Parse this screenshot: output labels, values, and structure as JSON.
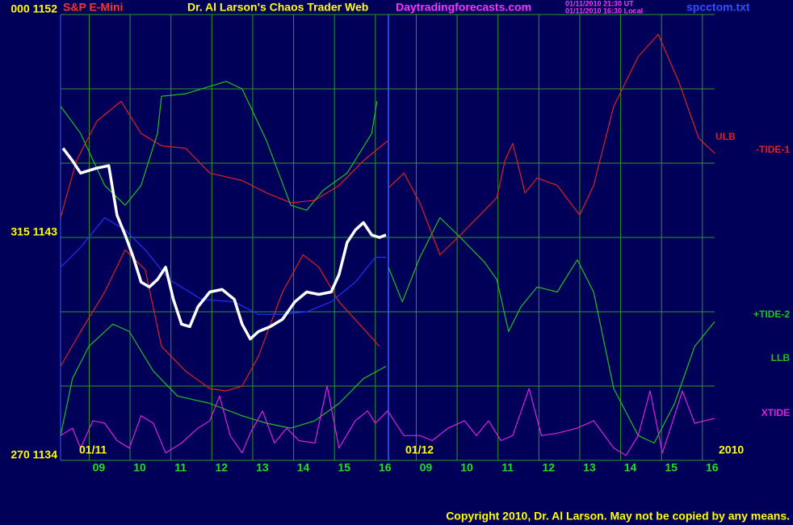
{
  "chart_data": {
    "type": "line",
    "title": "Dr. Al Larson's Chaos Trader Web",
    "instrument": "S&P E-Mini",
    "site": "Daytradingforecasts.com",
    "timestamps": [
      "01/11/2010 21:30 UT",
      "01/11/2010 16:30 Local"
    ],
    "file": "spcctom.txt",
    "copyright": "Copyright 2010, Dr. Al Larson. May not be copied by any means.",
    "date_labels": [
      "01/11",
      "01/12",
      "2010"
    ],
    "xlim": [
      0.3,
      16.3
    ],
    "ylim": [
      1134,
      1152
    ],
    "yticks": [
      {
        "value": 1152,
        "label": "000 1152"
      },
      {
        "value": 1143,
        "label": "315 1143"
      },
      {
        "value": 1134,
        "label": "270 1134"
      }
    ],
    "ygrid": [
      1152,
      1149,
      1146,
      1143,
      1140,
      1137,
      1134
    ],
    "xticks": [
      {
        "value": 1,
        "label": "09"
      },
      {
        "value": 2,
        "label": "10"
      },
      {
        "value": 3,
        "label": "11"
      },
      {
        "value": 4,
        "label": "12"
      },
      {
        "value": 5,
        "label": "13"
      },
      {
        "value": 6,
        "label": "14"
      },
      {
        "value": 7,
        "label": "15"
      },
      {
        "value": 8,
        "label": "16"
      },
      {
        "value": 9,
        "label": "09"
      },
      {
        "value": 10,
        "label": "10"
      },
      {
        "value": 11,
        "label": "11"
      },
      {
        "value": 12,
        "label": "12"
      },
      {
        "value": 13,
        "label": "13"
      },
      {
        "value": 14,
        "label": "14"
      },
      {
        "value": 15,
        "label": "15"
      },
      {
        "value": 16,
        "label": "16"
      }
    ],
    "day_break": 8.32,
    "grid": true,
    "series": [
      {
        "name": "ULB",
        "color": "#e02020",
        "x": [
          0.3,
          0.69,
          1.19,
          1.78,
          2.27,
          2.77,
          3.36,
          3.95,
          4.74,
          5.34,
          5.93,
          6.52,
          7.11,
          7.71,
          8.3
        ],
        "values": [
          1143.8,
          1146.1,
          1147.7,
          1148.5,
          1147.2,
          1146.7,
          1146.6,
          1145.6,
          1145.3,
          1144.8,
          1144.4,
          1144.5,
          1145.1,
          1146.1,
          1146.9
        ]
      },
      {
        "name": "-TIDE-1",
        "color": "#e02020",
        "x": [
          8.32,
          8.7,
          9.09,
          9.58,
          10.08,
          10.67,
          10.97,
          11.17,
          11.36,
          11.66,
          11.96,
          12.45,
          13.0,
          13.34,
          13.83,
          14.43,
          14.92,
          15.42,
          15.91,
          16.3
        ],
        "values": [
          1145.0,
          1145.6,
          1144.4,
          1142.3,
          1143.1,
          1144.1,
          1144.6,
          1146.1,
          1146.8,
          1144.8,
          1145.4,
          1145.1,
          1143.9,
          1145.1,
          1148.3,
          1150.3,
          1151.2,
          1149.3,
          1147.0,
          1146.4
        ]
      },
      {
        "name": "+TIDE-2",
        "color": "#20c020",
        "x": [
          8.32,
          8.66,
          9.09,
          9.58,
          10.08,
          10.67,
          10.97,
          11.26,
          11.56,
          11.96,
          12.45,
          12.94,
          13.34,
          13.83,
          14.43,
          14.82,
          15.32,
          15.81,
          16.3
        ],
        "values": [
          1141.8,
          1140.4,
          1142.2,
          1143.8,
          1143.0,
          1142.0,
          1141.3,
          1139.2,
          1140.2,
          1141.0,
          1140.8,
          1142.1,
          1140.8,
          1136.9,
          1135.0,
          1134.7,
          1136.3,
          1138.6,
          1139.6
        ]
      },
      {
        "name": "LLB",
        "color": "#20c020",
        "x": [
          0.3,
          0.59,
          0.99,
          1.58,
          1.98,
          2.57,
          3.16,
          3.95,
          4.74,
          5.34,
          5.93,
          6.52,
          7.11,
          7.71,
          8.26
        ],
        "values": [
          1135.0,
          1137.3,
          1138.6,
          1139.5,
          1139.2,
          1137.6,
          1136.6,
          1136.3,
          1135.8,
          1135.5,
          1135.3,
          1135.6,
          1136.3,
          1137.3,
          1137.8
        ]
      },
      {
        "name": "XTIDE",
        "color": "#e020e0",
        "x": [
          0.3,
          0.59,
          0.79,
          1.09,
          1.38,
          1.68,
          1.98,
          2.27,
          2.57,
          2.87,
          3.26,
          3.66,
          3.95,
          4.19,
          4.45,
          4.74,
          4.94,
          5.24,
          5.53,
          5.83,
          6.13,
          6.52,
          6.82,
          7.11,
          7.51,
          7.81,
          8.0,
          8.3,
          8.7,
          9.09,
          9.39,
          9.78,
          10.18,
          10.47,
          10.77,
          11.07,
          11.36,
          11.76,
          12.06,
          12.45,
          12.94,
          13.34,
          13.83,
          14.13,
          14.43,
          14.72,
          15.02,
          15.22,
          15.51,
          15.81,
          16.3
        ],
        "values": [
          1135.0,
          1135.3,
          1134.5,
          1135.6,
          1135.5,
          1134.8,
          1134.5,
          1135.8,
          1135.5,
          1134.3,
          1134.7,
          1135.3,
          1135.6,
          1136.6,
          1135.0,
          1134.3,
          1135.1,
          1136.0,
          1134.7,
          1135.3,
          1134.8,
          1134.7,
          1137.0,
          1134.5,
          1135.6,
          1136.0,
          1135.5,
          1136.0,
          1135.0,
          1135.0,
          1134.8,
          1135.3,
          1135.6,
          1135.0,
          1135.6,
          1134.8,
          1135.0,
          1136.9,
          1135.0,
          1135.1,
          1135.3,
          1135.6,
          1134.5,
          1134.2,
          1135.0,
          1136.8,
          1134.3,
          1135.3,
          1136.8,
          1135.5,
          1135.7
        ]
      },
      {
        "color": "#e02020",
        "x": [
          0.3,
          0.79,
          1.38,
          1.88,
          2.37,
          2.77,
          3.36,
          3.95,
          4.35,
          4.74,
          5.14,
          5.73,
          6.23,
          6.62,
          7.11,
          7.61,
          8.1
        ],
        "values": [
          1137.8,
          1139.2,
          1140.8,
          1142.5,
          1141.7,
          1138.6,
          1137.6,
          1136.9,
          1136.8,
          1137.0,
          1138.2,
          1140.8,
          1142.3,
          1141.8,
          1140.4,
          1139.5,
          1138.6
        ]
      },
      {
        "color": "#20c020",
        "x": [
          0.3,
          0.79,
          1.38,
          1.88,
          2.27,
          2.67,
          2.77,
          3.36,
          3.95,
          4.35,
          4.74,
          5.34,
          5.93,
          6.32,
          6.72,
          7.31,
          7.91,
          8.04
        ],
        "values": [
          1148.3,
          1147.2,
          1145.1,
          1144.3,
          1145.1,
          1147.2,
          1148.7,
          1148.8,
          1149.1,
          1149.3,
          1149.0,
          1146.9,
          1144.3,
          1144.1,
          1144.9,
          1145.6,
          1147.2,
          1148.5
        ]
      },
      {
        "color": "#2030ff",
        "x": [
          0.3,
          0.79,
          1.38,
          1.88,
          2.37,
          2.96,
          3.75,
          4.55,
          5.14,
          5.73,
          6.32,
          6.92,
          7.51,
          8.0,
          8.26
        ],
        "values": [
          1141.8,
          1142.6,
          1143.8,
          1143.3,
          1142.5,
          1141.3,
          1140.5,
          1140.4,
          1139.9,
          1139.9,
          1140.0,
          1140.4,
          1141.2,
          1142.2,
          1142.2
        ]
      },
      {
        "color": "#ffffff",
        "x": [
          0.36,
          0.59,
          0.79,
          0.99,
          1.19,
          1.48,
          1.68,
          1.88,
          2.08,
          2.27,
          2.47,
          2.67,
          2.87,
          3.06,
          3.26,
          3.46,
          3.66,
          3.95,
          4.25,
          4.55,
          4.74,
          4.94,
          5.14,
          5.43,
          5.73,
          6.03,
          6.32,
          6.62,
          6.92,
          7.11,
          7.31,
          7.51,
          7.71,
          7.91,
          8.1,
          8.26
        ],
        "values": [
          1146.6,
          1146.1,
          1145.6,
          1145.7,
          1145.8,
          1145.9,
          1143.9,
          1143.1,
          1142.2,
          1141.2,
          1141.0,
          1141.3,
          1141.8,
          1140.5,
          1139.5,
          1139.4,
          1140.2,
          1140.8,
          1140.9,
          1140.5,
          1139.5,
          1138.9,
          1139.2,
          1139.4,
          1139.7,
          1140.4,
          1140.8,
          1140.7,
          1140.8,
          1141.5,
          1142.8,
          1143.3,
          1143.6,
          1143.1,
          1143.0,
          1143.1
        ]
      }
    ]
  }
}
